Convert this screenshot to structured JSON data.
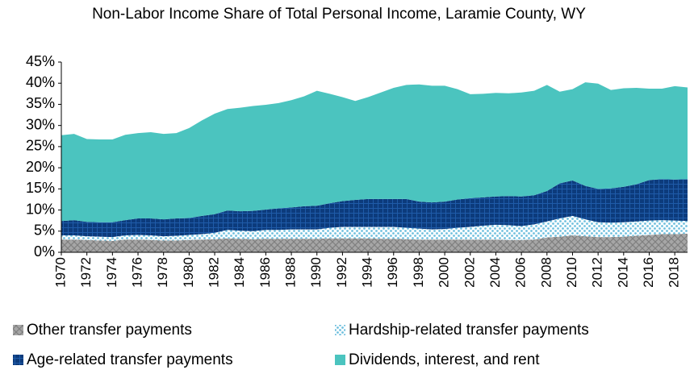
{
  "chart_data": {
    "type": "stacked_area",
    "title": "Non-Labor Income Share of Total Personal Income, Laramie County, WY",
    "x": [
      1970,
      1971,
      1972,
      1973,
      1974,
      1975,
      1976,
      1977,
      1978,
      1979,
      1980,
      1981,
      1982,
      1983,
      1984,
      1985,
      1986,
      1987,
      1988,
      1989,
      1990,
      1991,
      1992,
      1993,
      1994,
      1995,
      1996,
      1997,
      1998,
      1999,
      2000,
      2001,
      2002,
      2003,
      2004,
      2005,
      2006,
      2007,
      2008,
      2009,
      2010,
      2011,
      2012,
      2013,
      2014,
      2015,
      2016,
      2017,
      2018,
      2019
    ],
    "xlim": [
      1970,
      2019
    ],
    "xticks": [
      1970,
      1972,
      1974,
      1976,
      1978,
      1980,
      1982,
      1984,
      1986,
      1988,
      1990,
      1992,
      1994,
      1996,
      1998,
      2000,
      2002,
      2004,
      2006,
      2008,
      2010,
      2012,
      2014,
      2016,
      2018
    ],
    "ylim": [
      0,
      45
    ],
    "yticks": [
      {
        "value": 0,
        "label": "0%"
      },
      {
        "value": 5,
        "label": "5%"
      },
      {
        "value": 10,
        "label": "10%"
      },
      {
        "value": 15,
        "label": "15%"
      },
      {
        "value": 20,
        "label": "20%"
      },
      {
        "value": 25,
        "label": "25%"
      },
      {
        "value": 30,
        "label": "30%"
      },
      {
        "value": 35,
        "label": "35%"
      },
      {
        "value": 40,
        "label": "40%"
      },
      {
        "value": 45,
        "label": "45%"
      }
    ],
    "series": [
      {
        "name": "Other transfer payments",
        "color": "#a6a6a6",
        "values": [
          3.0,
          3.0,
          2.9,
          2.8,
          2.7,
          3.0,
          3.0,
          2.9,
          2.8,
          2.8,
          2.9,
          3.0,
          3.1,
          3.3,
          3.2,
          3.1,
          3.2,
          3.2,
          3.2,
          3.2,
          3.2,
          3.3,
          3.3,
          3.3,
          3.3,
          3.2,
          3.2,
          3.1,
          3.0,
          3.0,
          3.0,
          3.0,
          3.0,
          3.0,
          3.0,
          2.9,
          2.9,
          3.0,
          3.5,
          3.7,
          4.0,
          3.8,
          3.6,
          3.6,
          3.7,
          3.9,
          4.1,
          4.3,
          4.3,
          4.4
        ]
      },
      {
        "name": "Hardship-related transfer payments",
        "color": "#9dd3e8",
        "values": [
          1.0,
          1.0,
          0.9,
          0.9,
          0.9,
          1.0,
          1.1,
          1.1,
          1.0,
          1.1,
          1.2,
          1.3,
          1.5,
          2.0,
          1.9,
          1.9,
          2.1,
          2.1,
          2.2,
          2.2,
          2.2,
          2.5,
          2.7,
          2.7,
          2.7,
          2.8,
          2.8,
          2.7,
          2.6,
          2.4,
          2.5,
          2.8,
          3.0,
          3.3,
          3.5,
          3.5,
          3.3,
          3.6,
          3.8,
          4.3,
          4.6,
          4.0,
          3.5,
          3.4,
          3.4,
          3.4,
          3.4,
          3.3,
          3.2,
          3.0
        ]
      },
      {
        "name": "Age-related transfer payments",
        "color": "#0c3b7c",
        "values": [
          3.4,
          3.6,
          3.4,
          3.4,
          3.5,
          3.6,
          3.9,
          4.0,
          4.0,
          4.1,
          4.0,
          4.3,
          4.4,
          4.6,
          4.6,
          4.8,
          4.8,
          5.1,
          5.2,
          5.5,
          5.6,
          5.8,
          6.1,
          6.4,
          6.6,
          6.6,
          6.6,
          6.8,
          6.4,
          6.4,
          6.5,
          6.7,
          6.8,
          6.7,
          6.7,
          6.9,
          7.0,
          6.9,
          7.2,
          8.3,
          8.4,
          7.9,
          7.9,
          8.1,
          8.4,
          8.8,
          9.6,
          9.7,
          9.7,
          9.9
        ]
      },
      {
        "name": "Dividends, interest, and rent",
        "color": "#4bc4bf",
        "values": [
          20.3,
          20.4,
          19.6,
          19.6,
          19.6,
          20.2,
          20.2,
          20.4,
          20.2,
          20.2,
          21.3,
          22.6,
          23.8,
          24.0,
          24.5,
          24.8,
          24.8,
          24.9,
          25.4,
          26.0,
          27.2,
          25.9,
          24.6,
          23.4,
          24.1,
          25.2,
          26.3,
          27.0,
          27.7,
          27.6,
          27.4,
          26.1,
          24.6,
          24.5,
          24.5,
          24.3,
          24.6,
          24.7,
          25.1,
          21.7,
          21.6,
          24.5,
          24.9,
          23.3,
          23.3,
          22.8,
          21.6,
          21.4,
          22.1,
          21.7
        ]
      }
    ]
  }
}
